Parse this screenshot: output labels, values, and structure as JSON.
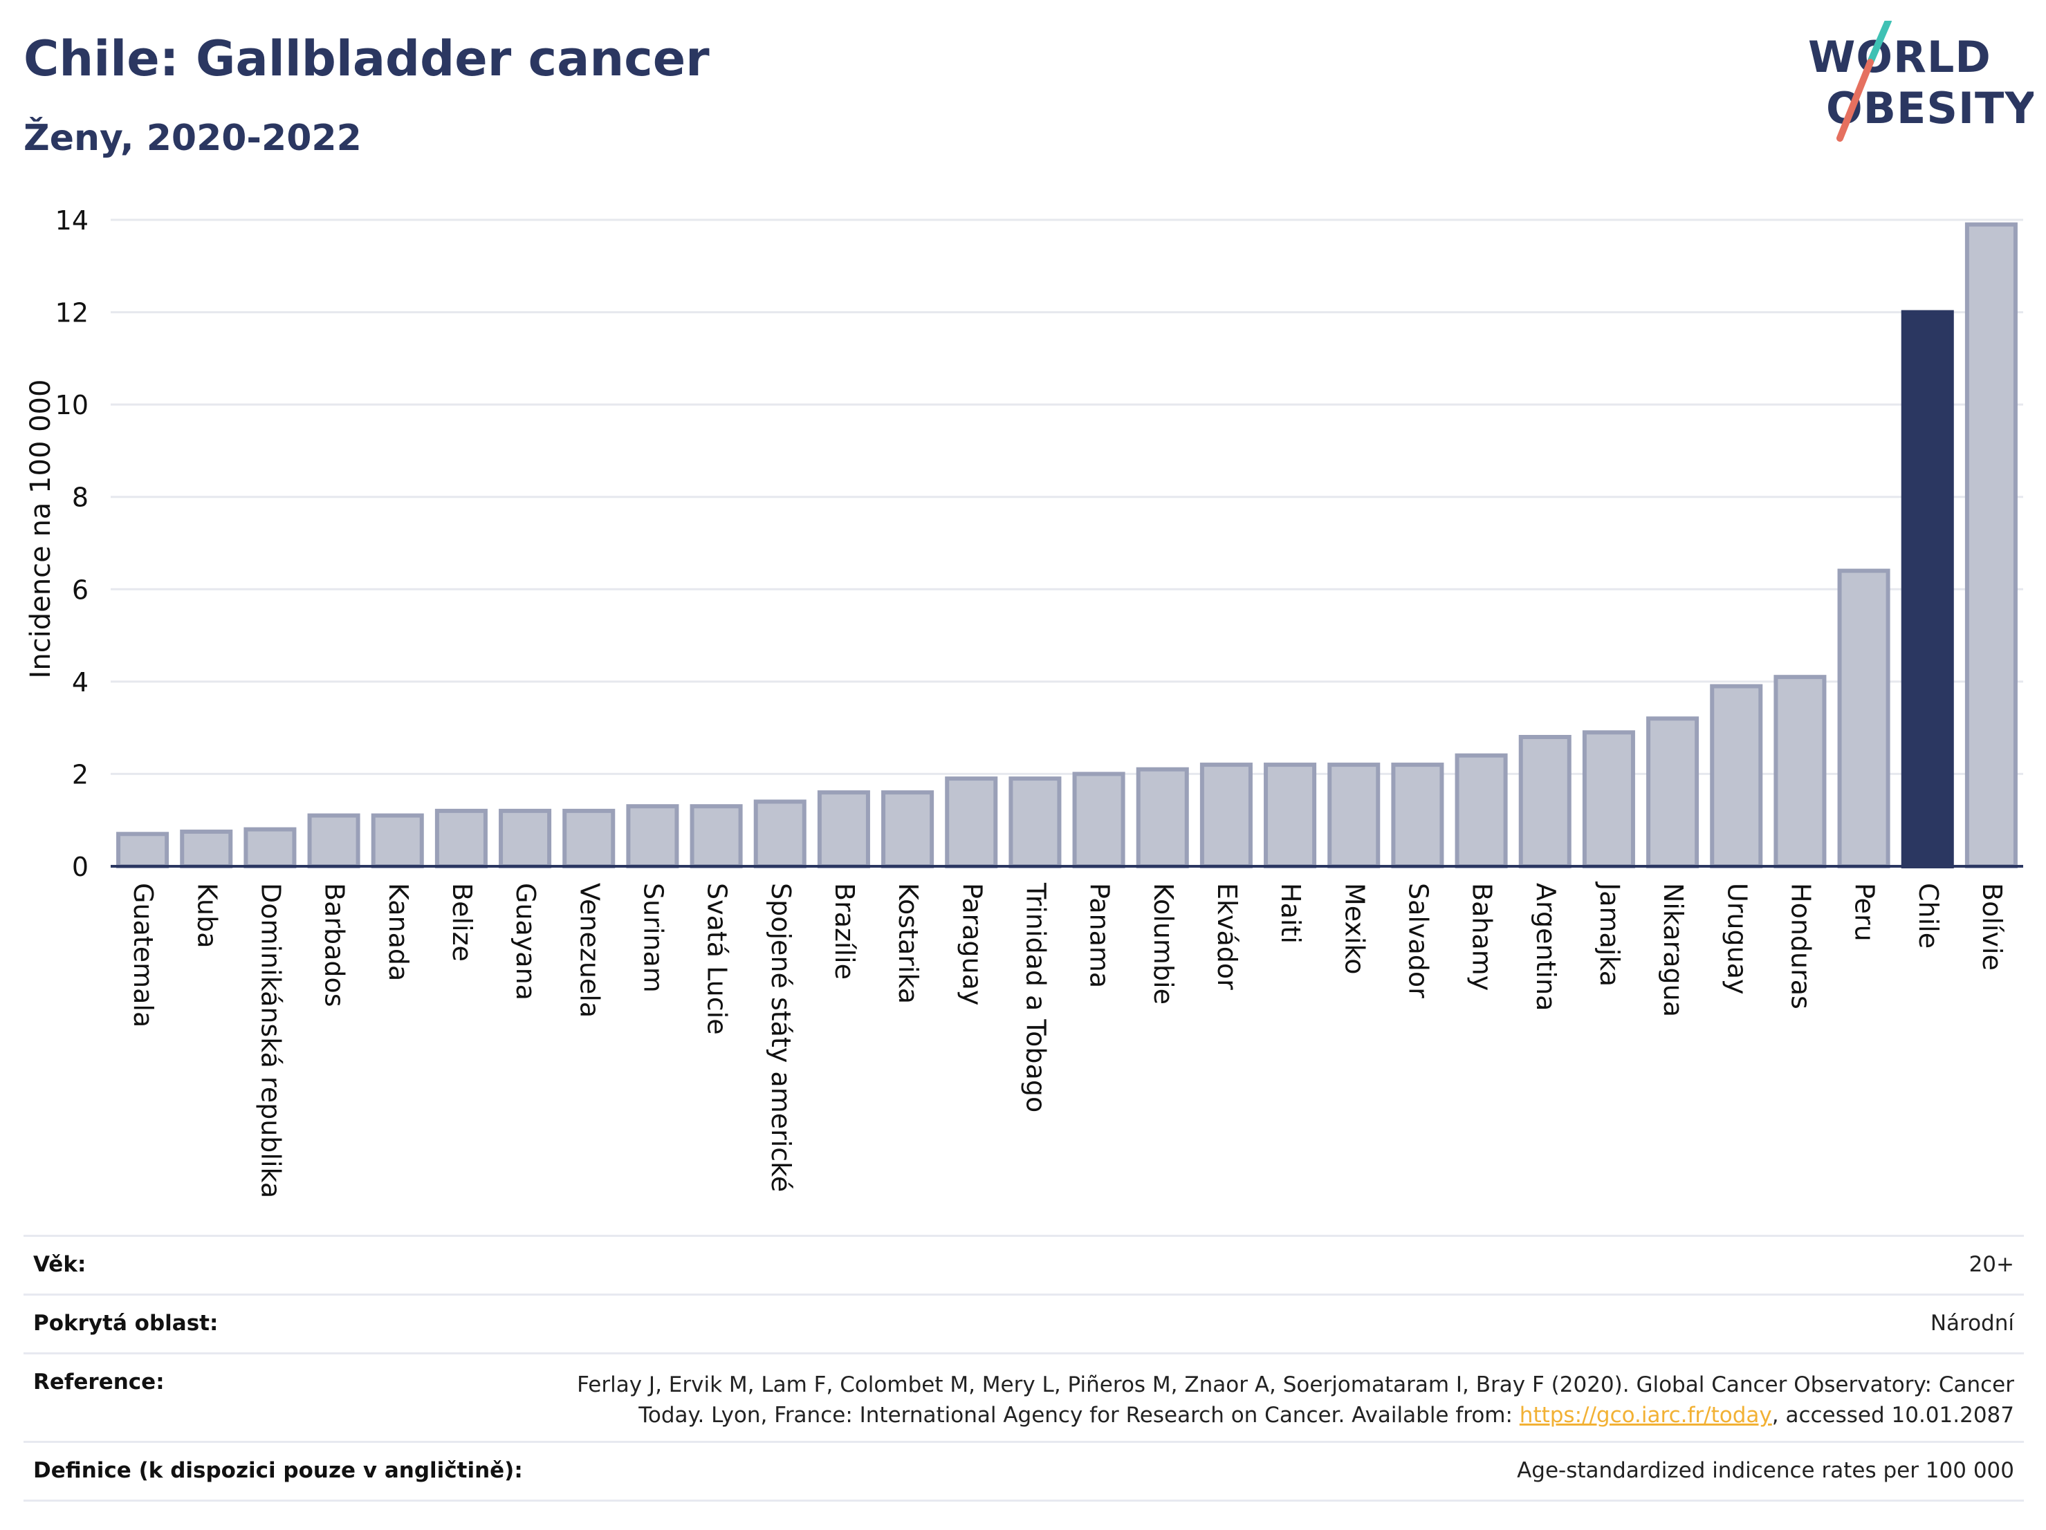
{
  "header": {
    "title": "Chile: Gallbladder cancer",
    "subtitle": "Ženy, 2020-2022"
  },
  "logo": {
    "line1": "WORLD",
    "line2": "OBESITY"
  },
  "chart_data": {
    "type": "bar",
    "title": "Chile: Gallbladder cancer",
    "subtitle": "Ženy, 2020-2022",
    "xlabel": "",
    "ylabel": "Incidence na 100 000",
    "ylim": [
      0,
      14
    ],
    "yticks": [
      0,
      2,
      4,
      6,
      8,
      10,
      12,
      14
    ],
    "grid": true,
    "highlight": "Chile",
    "colors": {
      "bar": "#bfc3d0",
      "bar_border": "#9aa0b8",
      "highlight": "#2b3761",
      "grid": "#e6e8ee",
      "axis": "#2b3761"
    },
    "categories": [
      "Guatemala",
      "Kuba",
      "Dominikánská republika",
      "Barbados",
      "Kanada",
      "Belize",
      "Guayana",
      "Venezuela",
      "Surinam",
      "Svatá Lucie",
      "Spojené státy americké",
      "Brazílie",
      "Kostarika",
      "Paraguay",
      "Trinidad a Tobago",
      "Panama",
      "Kolumbie",
      "Ekvádor",
      "Haiti",
      "Mexiko",
      "Salvador",
      "Bahamy",
      "Argentina",
      "Jamajka",
      "Nikaragua",
      "Uruguay",
      "Honduras",
      "Peru",
      "Chile",
      "Bolívie"
    ],
    "values": [
      0.7,
      0.75,
      0.8,
      1.1,
      1.1,
      1.2,
      1.2,
      1.2,
      1.3,
      1.3,
      1.4,
      1.6,
      1.6,
      1.9,
      1.9,
      2.0,
      2.1,
      2.2,
      2.2,
      2.2,
      2.2,
      2.4,
      2.8,
      2.9,
      3.2,
      3.9,
      4.1,
      6.4,
      12.0,
      13.9
    ]
  },
  "footer": {
    "rows": [
      {
        "label": "Věk:",
        "value": "20+"
      },
      {
        "label": "Pokrytá oblast:",
        "value": "Národní"
      },
      {
        "label": "Reference:",
        "value_before": "Ferlay J, Ervik M, Lam F, Colombet M, Mery L, Piñeros M, Znaor A, Soerjomataram I, Bray F (2020). Global Cancer Observatory: Cancer Today. Lyon, France: International Agency for Research on Cancer. Available from: ",
        "link": "https://gco.iarc.fr/today",
        "value_after": ", accessed 10.01.2087"
      },
      {
        "label": "Definice (k dispozici pouze v angličtině):",
        "value": "Age-standardized indicence rates per 100 000"
      }
    ]
  }
}
